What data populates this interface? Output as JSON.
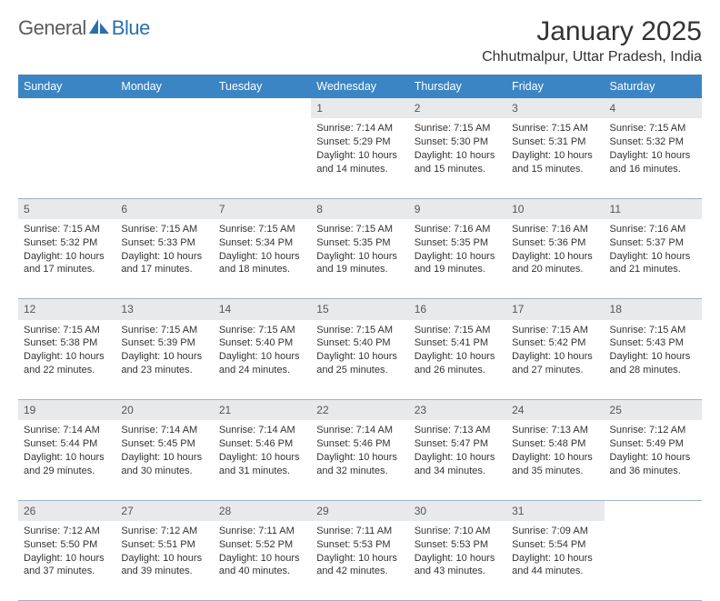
{
  "brand": {
    "name1": "General",
    "name2": "Blue"
  },
  "title": "January 2025",
  "location": "Chhutmalpur, Uttar Pradesh, India",
  "colors": {
    "header_bg": "#3b85c4",
    "header_fg": "#ffffff",
    "daynum_bg": "#e7e9eb",
    "daynum_fg": "#555555",
    "rule": "#9cb3c9",
    "text": "#333333",
    "logo_gray": "#5b5b5b",
    "logo_blue": "#2b6fb0"
  },
  "weekdays": [
    "Sunday",
    "Monday",
    "Tuesday",
    "Wednesday",
    "Thursday",
    "Friday",
    "Saturday"
  ],
  "weeks": [
    [
      null,
      null,
      null,
      {
        "n": "1",
        "sr": "7:14 AM",
        "ss": "5:29 PM",
        "dl": "10 hours and 14 minutes."
      },
      {
        "n": "2",
        "sr": "7:15 AM",
        "ss": "5:30 PM",
        "dl": "10 hours and 15 minutes."
      },
      {
        "n": "3",
        "sr": "7:15 AM",
        "ss": "5:31 PM",
        "dl": "10 hours and 15 minutes."
      },
      {
        "n": "4",
        "sr": "7:15 AM",
        "ss": "5:32 PM",
        "dl": "10 hours and 16 minutes."
      }
    ],
    [
      {
        "n": "5",
        "sr": "7:15 AM",
        "ss": "5:32 PM",
        "dl": "10 hours and 17 minutes."
      },
      {
        "n": "6",
        "sr": "7:15 AM",
        "ss": "5:33 PM",
        "dl": "10 hours and 17 minutes."
      },
      {
        "n": "7",
        "sr": "7:15 AM",
        "ss": "5:34 PM",
        "dl": "10 hours and 18 minutes."
      },
      {
        "n": "8",
        "sr": "7:15 AM",
        "ss": "5:35 PM",
        "dl": "10 hours and 19 minutes."
      },
      {
        "n": "9",
        "sr": "7:16 AM",
        "ss": "5:35 PM",
        "dl": "10 hours and 19 minutes."
      },
      {
        "n": "10",
        "sr": "7:16 AM",
        "ss": "5:36 PM",
        "dl": "10 hours and 20 minutes."
      },
      {
        "n": "11",
        "sr": "7:16 AM",
        "ss": "5:37 PM",
        "dl": "10 hours and 21 minutes."
      }
    ],
    [
      {
        "n": "12",
        "sr": "7:15 AM",
        "ss": "5:38 PM",
        "dl": "10 hours and 22 minutes."
      },
      {
        "n": "13",
        "sr": "7:15 AM",
        "ss": "5:39 PM",
        "dl": "10 hours and 23 minutes."
      },
      {
        "n": "14",
        "sr": "7:15 AM",
        "ss": "5:40 PM",
        "dl": "10 hours and 24 minutes."
      },
      {
        "n": "15",
        "sr": "7:15 AM",
        "ss": "5:40 PM",
        "dl": "10 hours and 25 minutes."
      },
      {
        "n": "16",
        "sr": "7:15 AM",
        "ss": "5:41 PM",
        "dl": "10 hours and 26 minutes."
      },
      {
        "n": "17",
        "sr": "7:15 AM",
        "ss": "5:42 PM",
        "dl": "10 hours and 27 minutes."
      },
      {
        "n": "18",
        "sr": "7:15 AM",
        "ss": "5:43 PM",
        "dl": "10 hours and 28 minutes."
      }
    ],
    [
      {
        "n": "19",
        "sr": "7:14 AM",
        "ss": "5:44 PM",
        "dl": "10 hours and 29 minutes."
      },
      {
        "n": "20",
        "sr": "7:14 AM",
        "ss": "5:45 PM",
        "dl": "10 hours and 30 minutes."
      },
      {
        "n": "21",
        "sr": "7:14 AM",
        "ss": "5:46 PM",
        "dl": "10 hours and 31 minutes."
      },
      {
        "n": "22",
        "sr": "7:14 AM",
        "ss": "5:46 PM",
        "dl": "10 hours and 32 minutes."
      },
      {
        "n": "23",
        "sr": "7:13 AM",
        "ss": "5:47 PM",
        "dl": "10 hours and 34 minutes."
      },
      {
        "n": "24",
        "sr": "7:13 AM",
        "ss": "5:48 PM",
        "dl": "10 hours and 35 minutes."
      },
      {
        "n": "25",
        "sr": "7:12 AM",
        "ss": "5:49 PM",
        "dl": "10 hours and 36 minutes."
      }
    ],
    [
      {
        "n": "26",
        "sr": "7:12 AM",
        "ss": "5:50 PM",
        "dl": "10 hours and 37 minutes."
      },
      {
        "n": "27",
        "sr": "7:12 AM",
        "ss": "5:51 PM",
        "dl": "10 hours and 39 minutes."
      },
      {
        "n": "28",
        "sr": "7:11 AM",
        "ss": "5:52 PM",
        "dl": "10 hours and 40 minutes."
      },
      {
        "n": "29",
        "sr": "7:11 AM",
        "ss": "5:53 PM",
        "dl": "10 hours and 42 minutes."
      },
      {
        "n": "30",
        "sr": "7:10 AM",
        "ss": "5:53 PM",
        "dl": "10 hours and 43 minutes."
      },
      {
        "n": "31",
        "sr": "7:09 AM",
        "ss": "5:54 PM",
        "dl": "10 hours and 44 minutes."
      },
      null
    ]
  ],
  "labels": {
    "sunrise": "Sunrise:",
    "sunset": "Sunset:",
    "daylight": "Daylight:"
  }
}
